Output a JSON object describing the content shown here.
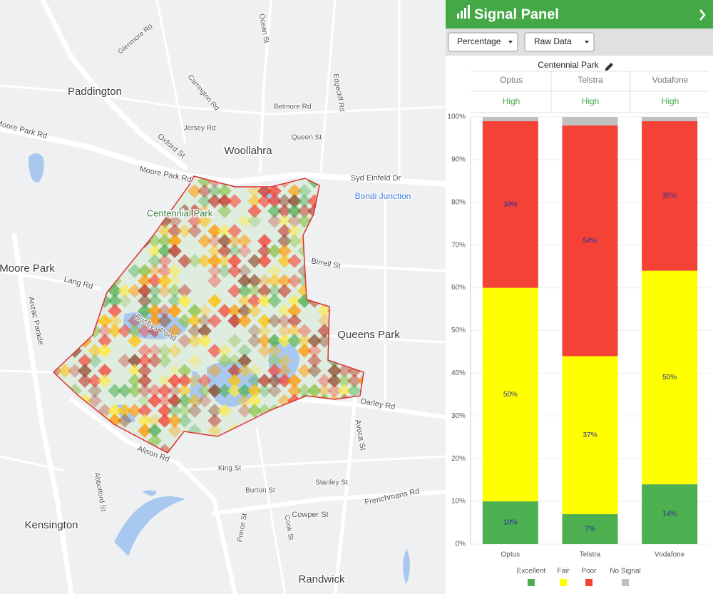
{
  "map": {
    "labels": [
      "Paddington",
      "Woollahra",
      "Centennial Park",
      "Moore Park",
      "Queens Park",
      "Kensington",
      "Randwick",
      "Bondi Junction",
      "Moore Park Rd",
      "Moore Park Rd",
      "Oxford St",
      "Syd Einfeld Dr",
      "Alison Rd",
      "Darley Rd",
      "Anzac Parade",
      "Frenchmans Rd",
      "Cowper St",
      "Lang Rd",
      "Busbys Pond",
      "Avoca St",
      "Birrell St",
      "King St",
      "Burton St",
      "Stanley St",
      "Glenmore Rd",
      "Ocean St",
      "Edgecliff Rd",
      "Carrington Rd",
      "Belmore Rd",
      "Abbotford St",
      "Jersey Rd",
      "Queen St",
      "Cook St",
      "Prince St"
    ]
  },
  "panel": {
    "title": "Signal Panel",
    "unit_select": "Percentage",
    "data_select": "Raw Data",
    "area": "Centennial Park",
    "table": {
      "columns": [
        "Optus",
        "Telstra",
        "Vodafone"
      ],
      "rows": [
        [
          "High",
          "High",
          "High"
        ]
      ]
    }
  },
  "chart_data": {
    "type": "stacked_bar",
    "categories": [
      "Optus",
      "Telstra",
      "Vodafone"
    ],
    "series": [
      {
        "name": "Excellent",
        "color": "#4caf50",
        "values": [
          10,
          7,
          14
        ],
        "value_labels": [
          "10%",
          "7%",
          "14%"
        ]
      },
      {
        "name": "Fair",
        "color": "#ffff00",
        "values": [
          50,
          37,
          50
        ],
        "value_labels": [
          "50%",
          "37%",
          "50%"
        ]
      },
      {
        "name": "Poor",
        "color": "#f44336",
        "values": [
          39,
          54,
          35
        ],
        "value_labels": [
          "39%",
          "54%",
          "35%"
        ]
      },
      {
        "name": "No Signal",
        "color": "#c0c0c0",
        "values": [
          1,
          2,
          1
        ]
      }
    ],
    "ylim": [
      0,
      100
    ],
    "yticks": [
      {
        "value": 0,
        "label": "0%"
      },
      {
        "value": 10,
        "label": "10%"
      },
      {
        "value": 20,
        "label": "20%"
      },
      {
        "value": 30,
        "label": "30%"
      },
      {
        "value": 40,
        "label": "40%"
      },
      {
        "value": 50,
        "label": "50%"
      },
      {
        "value": 60,
        "label": "60%"
      },
      {
        "value": 70,
        "label": "70%"
      },
      {
        "value": 80,
        "label": "80%"
      },
      {
        "value": 90,
        "label": "90%"
      },
      {
        "value": 100,
        "label": "100%"
      }
    ],
    "grid": true
  }
}
